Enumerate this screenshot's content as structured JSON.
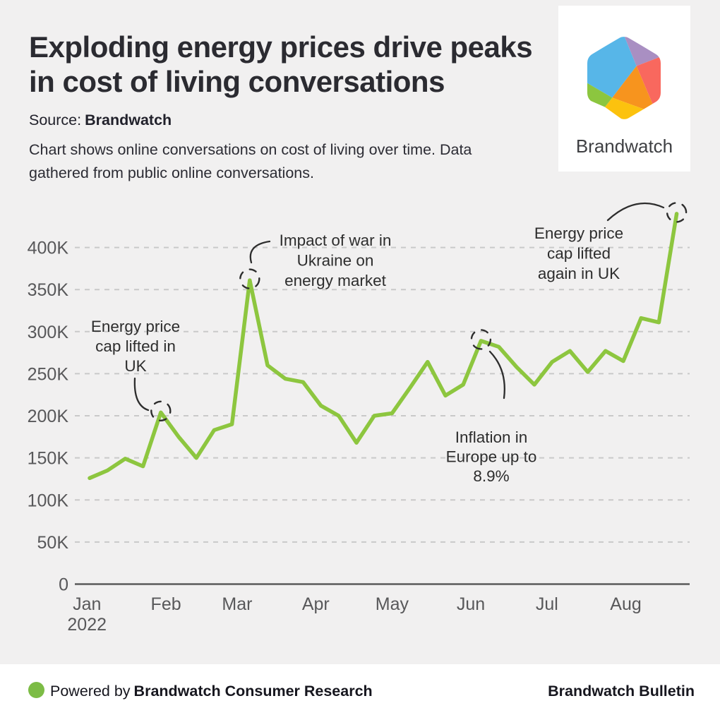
{
  "header": {
    "title_lines": [
      "Exploding energy prices drive peaks",
      "in cost of living conversations"
    ],
    "source_label": "Source:",
    "source_value": "Brandwatch",
    "description_lines": [
      "Chart shows online conversations on cost of living over time. Data",
      "gathered from public online conversations."
    ]
  },
  "logo": {
    "wordmark": "Brandwatch",
    "colors": {
      "blue": "#57b6e8",
      "purple": "#a98fc2",
      "red": "#f9685e",
      "orange": "#f7941e",
      "yellow": "#fcc20e",
      "green": "#8cc63f"
    }
  },
  "chart_data": {
    "type": "line",
    "series_name": "Online conversations on cost of living",
    "x_interval": "weekly",
    "x_start": "Jan 2022",
    "values_thousands": [
      126,
      135,
      149,
      140,
      204,
      175,
      150,
      183,
      190,
      361,
      260,
      244,
      240,
      212,
      200,
      168,
      200,
      203,
      233,
      264,
      224,
      237,
      289,
      282,
      258,
      237,
      264,
      277,
      252,
      277,
      265,
      316,
      311,
      440
    ],
    "ylim_thousands": [
      0,
      450
    ],
    "y_tick_values": [
      0,
      50,
      100,
      150,
      200,
      250,
      300,
      350,
      400
    ],
    "y_tick_labels": [
      "0",
      "50K",
      "100K",
      "150K",
      "200K",
      "250K",
      "300K",
      "350K",
      "400K"
    ],
    "x_ticks": [
      {
        "label": "Jan",
        "sublabel": "2022",
        "week": -0.15
      },
      {
        "label": "Feb",
        "week": 4.29
      },
      {
        "label": "Mar",
        "week": 8.29
      },
      {
        "label": "Apr",
        "week": 12.71
      },
      {
        "label": "May",
        "week": 17.0
      },
      {
        "label": "Jun",
        "week": 21.43
      },
      {
        "label": "Jul",
        "week": 25.71
      },
      {
        "label": "Aug",
        "week": 30.14
      }
    ],
    "grid": "dashed-horizontal",
    "legend": "none",
    "line_color": "#8dc63f",
    "annotations": [
      {
        "point_index": 4,
        "value_thousands": 204,
        "lines": [
          "Energy price",
          "cap lifted in",
          "UK"
        ]
      },
      {
        "point_index": 9,
        "value_thousands": 361,
        "lines": [
          "Impact of war in",
          "Ukraine on",
          "energy market"
        ]
      },
      {
        "point_index": 22,
        "value_thousands": 289,
        "lines": [
          "Inflation in",
          "Europe up to",
          "8.9%"
        ]
      },
      {
        "point_index": 33,
        "value_thousands": 440,
        "lines": [
          "Energy price",
          "cap lifted",
          "again in UK"
        ]
      }
    ]
  },
  "footer": {
    "powered_prefix": "Powered by",
    "powered_brand": "Brandwatch Consumer Research",
    "bulletin": "Brandwatch Bulletin",
    "dot_color": "#7cbc45"
  }
}
